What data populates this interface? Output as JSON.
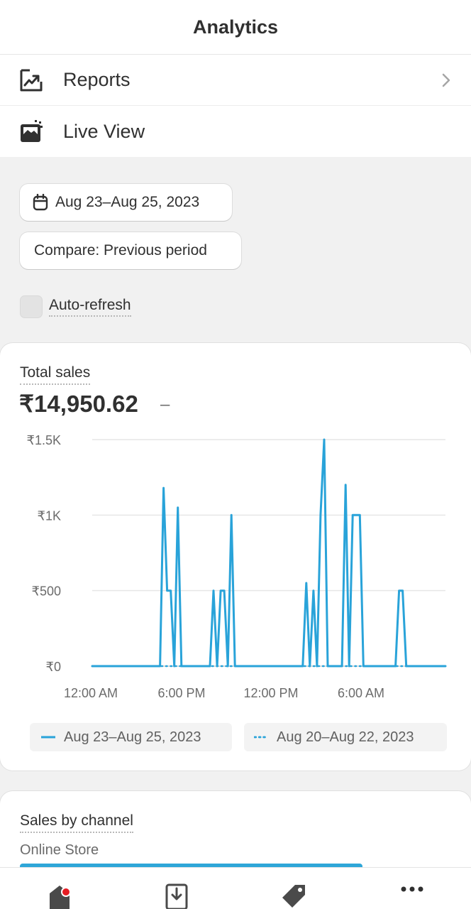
{
  "header": {
    "title": "Analytics"
  },
  "nav": {
    "items": [
      {
        "label": "Reports",
        "icon": "reports-icon"
      },
      {
        "label": "Live View",
        "icon": "live-view-icon"
      }
    ]
  },
  "filters": {
    "date_range": "Aug 23–Aug 25, 2023",
    "compare": "Compare: Previous period",
    "auto_refresh_label": "Auto-refresh",
    "auto_refresh_checked": false
  },
  "total_sales": {
    "title": "Total sales",
    "value": "₹14,950.62",
    "change": "–"
  },
  "chart_data": {
    "type": "line",
    "title": "Total sales",
    "xlabel": "",
    "ylabel": "",
    "yticks": [
      "₹1.5K",
      "₹1K",
      "₹500",
      "₹0"
    ],
    "ytick_values": [
      1500,
      1000,
      500,
      0
    ],
    "xticks": [
      "12:00 AM",
      "6:00 PM",
      "12:00 PM",
      "6:00 AM"
    ],
    "ylim": [
      0,
      1500
    ],
    "grid": true,
    "legend_position": "bottom",
    "series": [
      {
        "name": "Aug 23–Aug 25, 2023",
        "style": "solid",
        "color": "#29a3d9",
        "values": [
          0,
          0,
          0,
          0,
          0,
          0,
          0,
          0,
          0,
          0,
          0,
          0,
          0,
          0,
          0,
          0,
          0,
          0,
          0,
          0,
          1180,
          500,
          500,
          0,
          1050,
          0,
          0,
          0,
          0,
          0,
          0,
          0,
          0,
          0,
          500,
          0,
          500,
          500,
          0,
          1000,
          0,
          0,
          0,
          0,
          0,
          0,
          0,
          0,
          0,
          0,
          0,
          0,
          0,
          0,
          0,
          0,
          0,
          0,
          0,
          0,
          550,
          0,
          500,
          0,
          1000,
          1500,
          0,
          0,
          0,
          0,
          0,
          1200,
          0,
          1000,
          1000,
          1000,
          0,
          0,
          0,
          0,
          0,
          0,
          0,
          0,
          0,
          0,
          500,
          500,
          0,
          0,
          0,
          0,
          0,
          0,
          0,
          0,
          0,
          0,
          0,
          0
        ]
      },
      {
        "name": "Aug 20–Aug 22, 2023",
        "style": "dotted",
        "color": "#29a3d9",
        "values": [
          0,
          0,
          0,
          0,
          0,
          0,
          0,
          0,
          0,
          0,
          0,
          0,
          0,
          0,
          0,
          0,
          0,
          0,
          0,
          0,
          0,
          0,
          0,
          0,
          0,
          0,
          0,
          0,
          0,
          0,
          0,
          0,
          0,
          0,
          0,
          0,
          0,
          0,
          0,
          0,
          0,
          0,
          0,
          0,
          0,
          0,
          0,
          0,
          0,
          0,
          0,
          0,
          0,
          0,
          0,
          0,
          0,
          0,
          0,
          0,
          0,
          0,
          0,
          0,
          0,
          0,
          0,
          0,
          0,
          0,
          0,
          0,
          0,
          0,
          0,
          0,
          0,
          0,
          0,
          0,
          0,
          0,
          0,
          0,
          0,
          0,
          0,
          0,
          0,
          0,
          0,
          0,
          0,
          0,
          0,
          0,
          0,
          0,
          0,
          0
        ]
      }
    ]
  },
  "sales_by_channel": {
    "title": "Sales by channel",
    "channels": [
      {
        "name": "Online Store",
        "share": 1.0,
        "color": "#2ea6d8"
      }
    ]
  },
  "bottom_nav": {
    "tabs": [
      {
        "icon": "home-icon",
        "has_notification": true
      },
      {
        "icon": "orders-icon"
      },
      {
        "icon": "products-tag-icon"
      },
      {
        "icon": "more-icon"
      }
    ]
  }
}
